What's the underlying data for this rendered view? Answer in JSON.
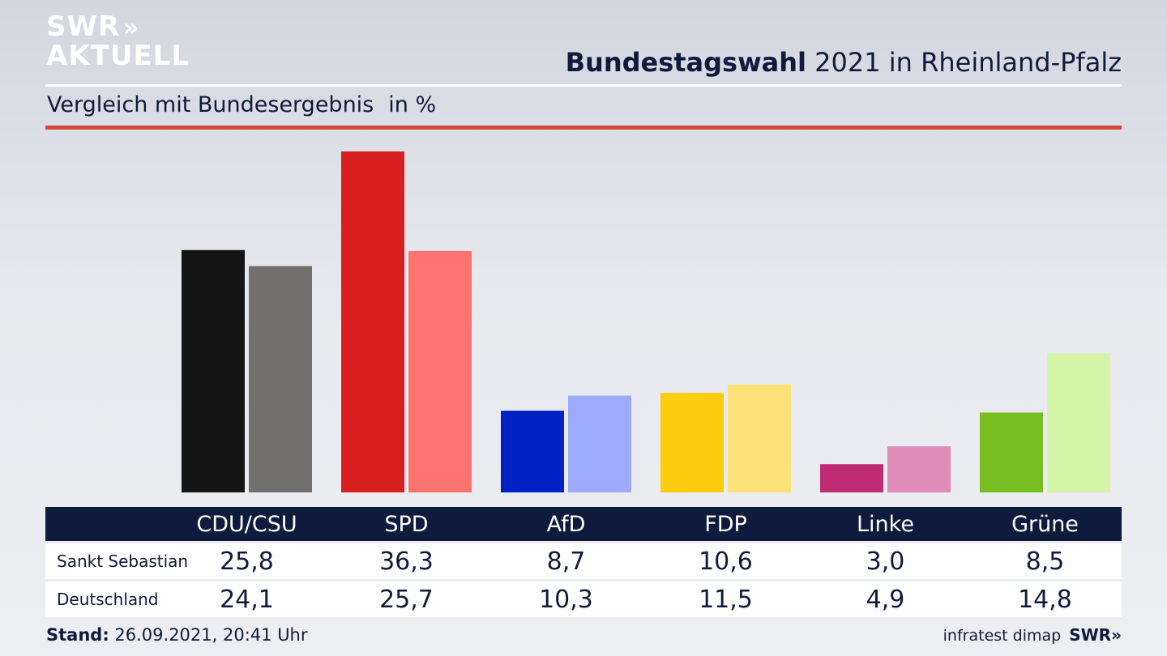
{
  "brand": {
    "line1": "SWR",
    "line2": "AKTUELL",
    "arrows": "»",
    "footer_logo": "SWR»"
  },
  "header": {
    "title_bold": "Bundestagswahl",
    "title_rest": "2021 in Rheinland-Pfalz",
    "subtitle": "Vergleich mit Bundesergebnis",
    "unit": "in %"
  },
  "chart_data": {
    "type": "bar",
    "categories": [
      "CDU/CSU",
      "SPD",
      "AfD",
      "FDP",
      "Linke",
      "Grüne"
    ],
    "series": [
      {
        "name": "Sankt Sebastian",
        "values": [
          25.8,
          36.3,
          8.7,
          10.6,
          3.0,
          8.5
        ],
        "labels": [
          "25,8",
          "36,3",
          "8,7",
          "10,6",
          "3,0",
          "8,5"
        ]
      },
      {
        "name": "Deutschland",
        "values": [
          24.1,
          25.7,
          10.3,
          11.5,
          4.9,
          14.8
        ],
        "labels": [
          "24,1",
          "25,7",
          "10,3",
          "11,5",
          "4,9",
          "14,8"
        ]
      }
    ],
    "colors": {
      "primary": [
        "#141414",
        "#d71f1f",
        "#0022c4",
        "#fdcc0d",
        "#bf2c73",
        "#79be20"
      ],
      "secondary": [
        "#737170",
        "#ff7370",
        "#9eaafc",
        "#fde27a",
        "#e08cba",
        "#d4f5a8"
      ]
    },
    "ylim": [
      0,
      36.3
    ],
    "grid": false
  },
  "footer": {
    "stand_label": "Stand:",
    "stand_value": "26.09.2021, 20:41 Uhr",
    "source": "infratest dimap"
  }
}
